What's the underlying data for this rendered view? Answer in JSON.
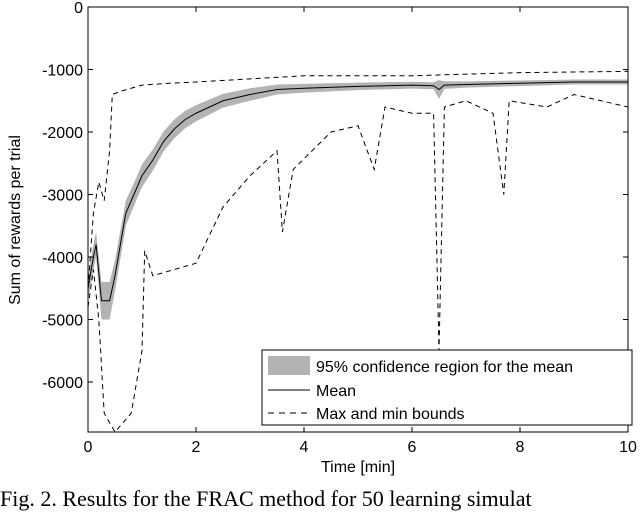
{
  "chart_data": {
    "type": "line",
    "xlabel": "Time [min]",
    "ylabel": "Sum of rewards per trial",
    "xlim": [
      0,
      10
    ],
    "ylim": [
      -6800,
      0
    ],
    "xticks": [
      0,
      2,
      4,
      6,
      8,
      10
    ],
    "yticks": [
      0,
      -1000,
      -2000,
      -3000,
      -4000,
      -5000,
      -6000
    ],
    "grid": false,
    "legend_position": "bottom-right",
    "legend": [
      "95% confidence region for the mean",
      "Mean",
      "Max and min bounds"
    ],
    "series": [
      {
        "name": "Mean",
        "x": [
          0,
          0.1,
          0.15,
          0.25,
          0.4,
          0.5,
          0.7,
          0.9,
          1.0,
          1.2,
          1.4,
          1.6,
          1.8,
          2.0,
          2.5,
          3.0,
          3.5,
          4.0,
          5.0,
          6.0,
          6.4,
          6.5,
          6.6,
          7.0,
          8.0,
          9.0,
          10.0
        ],
        "y": [
          -4500,
          -4000,
          -3800,
          -4700,
          -4700,
          -4300,
          -3300,
          -2900,
          -2700,
          -2450,
          -2150,
          -1950,
          -1800,
          -1700,
          -1500,
          -1400,
          -1320,
          -1300,
          -1270,
          -1250,
          -1260,
          -1320,
          -1250,
          -1240,
          -1220,
          -1200,
          -1200
        ],
        "ci_halfwidth": [
          200,
          200,
          200,
          300,
          300,
          250,
          200,
          180,
          180,
          170,
          160,
          150,
          140,
          130,
          110,
          100,
          80,
          70,
          60,
          55,
          55,
          150,
          60,
          50,
          45,
          40,
          40
        ]
      },
      {
        "name": "Max bound",
        "x": [
          0,
          0.1,
          0.2,
          0.3,
          0.4,
          0.45,
          0.6,
          1.0,
          1.5,
          2.0,
          3.0,
          4.0,
          6.0,
          8.0,
          10.0
        ],
        "y": [
          -4500,
          -3300,
          -2800,
          -3100,
          -2300,
          -1400,
          -1350,
          -1250,
          -1220,
          -1200,
          -1150,
          -1100,
          -1100,
          -1050,
          -1030
        ]
      },
      {
        "name": "Min bound",
        "x": [
          0,
          0.1,
          0.2,
          0.3,
          0.5,
          0.8,
          1.0,
          1.05,
          1.2,
          2.0,
          2.5,
          3.0,
          3.5,
          3.6,
          3.8,
          4.5,
          5.0,
          5.3,
          5.5,
          6.0,
          6.4,
          6.5,
          6.6,
          7.0,
          7.5,
          7.7,
          7.8,
          8.5,
          9.0,
          10.0
        ],
        "y": [
          -4800,
          -4200,
          -5000,
          -6500,
          -6800,
          -6500,
          -5500,
          -3900,
          -4300,
          -4100,
          -3200,
          -2700,
          -2300,
          -3600,
          -2600,
          -2000,
          -1900,
          -2600,
          -1600,
          -1700,
          -1700,
          -5500,
          -1600,
          -1500,
          -1700,
          -3000,
          -1500,
          -1600,
          -1400,
          -1600
        ]
      }
    ]
  },
  "caption": "Fig. 2. Results for the FRAC method for 50 learning simulat"
}
